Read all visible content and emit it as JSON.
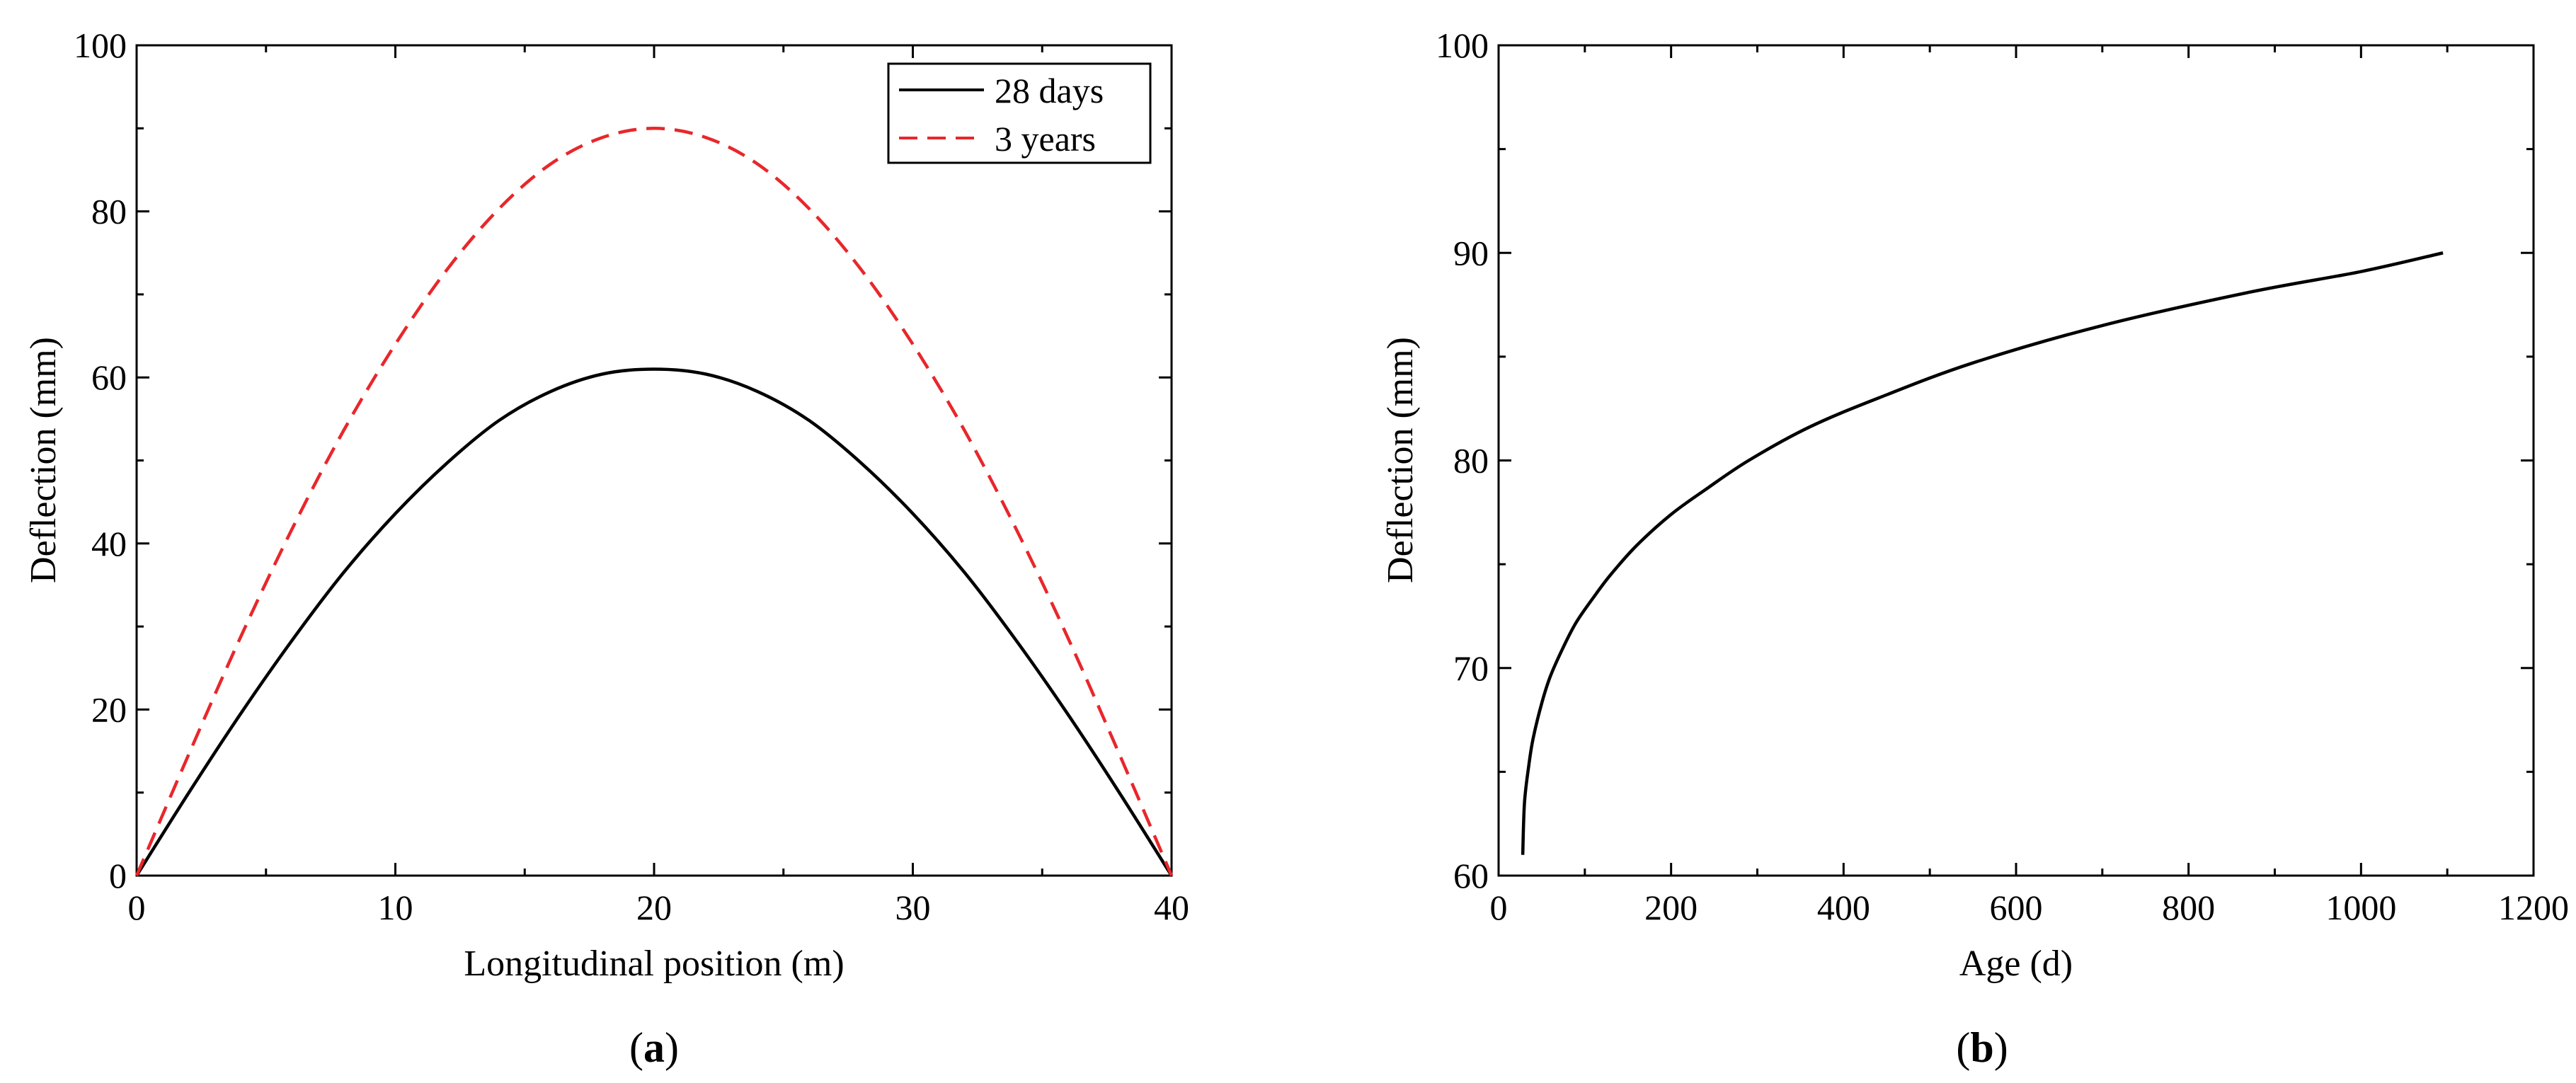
{
  "chart_data": [
    {
      "panel": "(a)",
      "caption_open": "(",
      "caption_letter": "a",
      "caption_close": ")",
      "type": "line",
      "title": "",
      "xlabel": "Longitudinal position (m)",
      "ylabel": "Deflection (mm)",
      "xlim": [
        0,
        40
      ],
      "ylim": [
        0,
        100
      ],
      "xticks": [
        0,
        10,
        20,
        30,
        40
      ],
      "xtick_labels": [
        "0",
        "10",
        "20",
        "30",
        "40"
      ],
      "yticks": [
        0,
        20,
        40,
        60,
        80,
        100
      ],
      "ytick_labels": [
        "0",
        "20",
        "40",
        "60",
        "80",
        "100"
      ],
      "grid": false,
      "legend_position": "top-right",
      "series": [
        {
          "name": "28 days",
          "color": "#000000",
          "dash": "solid",
          "x": [
            0,
            2,
            4,
            6,
            8,
            10,
            12,
            14,
            16,
            18,
            20,
            22,
            24,
            26,
            28,
            30,
            32,
            34,
            36,
            38,
            40
          ],
          "y": [
            0,
            9.9,
            19.4,
            28.3,
            36.5,
            43.6,
            49.7,
            54.8,
            58.3,
            60.4,
            61.0,
            60.4,
            58.3,
            54.8,
            49.7,
            43.6,
            36.5,
            28.3,
            19.4,
            9.9,
            0
          ]
        },
        {
          "name": "3 years",
          "color": "#e8272b",
          "dash": "dashed",
          "x": [
            0,
            2,
            4,
            6,
            8,
            10,
            12,
            14,
            16,
            18,
            20,
            22,
            24,
            26,
            28,
            30,
            32,
            34,
            36,
            38,
            40
          ],
          "y": [
            0,
            14.5,
            28.6,
            41.7,
            53.6,
            64.0,
            73.0,
            80.3,
            85.7,
            88.9,
            90.0,
            88.9,
            85.7,
            80.3,
            73.0,
            64.0,
            53.6,
            41.7,
            28.6,
            14.5,
            0
          ]
        }
      ]
    },
    {
      "panel": "(b)",
      "caption_open": "(",
      "caption_letter": "b",
      "caption_close": ")",
      "type": "line",
      "title": "",
      "xlabel": "Age (d)",
      "ylabel": "Deflection (mm)",
      "xlim": [
        0,
        1200
      ],
      "ylim": [
        60,
        100
      ],
      "xticks": [
        0,
        200,
        400,
        600,
        800,
        1000,
        1200
      ],
      "xtick_labels": [
        "0",
        "200",
        "400",
        "600",
        "800",
        "1000",
        "1200"
      ],
      "yticks": [
        60,
        70,
        80,
        90,
        100
      ],
      "ytick_labels": [
        "60",
        "70",
        "80",
        "90",
        "100"
      ],
      "grid": false,
      "series": [
        {
          "name": "Deflection",
          "color": "#000000",
          "dash": "solid",
          "x": [
            28,
            30,
            35,
            40,
            50,
            60,
            75,
            90,
            110,
            130,
            160,
            200,
            240,
            290,
            360,
            440,
            550,
            700,
            870,
            1000,
            1095
          ],
          "y": [
            61.0,
            63.5,
            65.3,
            66.6,
            68.3,
            69.6,
            71.0,
            72.2,
            73.4,
            74.5,
            75.9,
            77.4,
            78.6,
            80.0,
            81.6,
            83.0,
            84.7,
            86.5,
            88.1,
            89.1,
            90.0
          ]
        }
      ]
    }
  ]
}
